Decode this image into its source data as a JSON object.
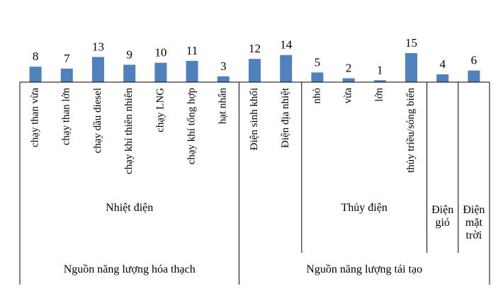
{
  "chart_data": {
    "type": "bar",
    "color": "#4f81bd",
    "groups": [
      {
        "label": "Nguồn năng lượng hóa thạch",
        "subgroups": [
          {
            "label": "Nhiệt điện",
            "categories": [
              "chạy than vừa",
              "chạy than lớn",
              "chạy dầu diesel",
              "chạy khí thiên nhiên",
              "chạy LNG",
              "chạy khí tổng hợp",
              "hạt nhân"
            ],
            "values": [
              8,
              7,
              13,
              9,
              10,
              11,
              3
            ]
          }
        ]
      },
      {
        "label": "Nguồn năng lượng tái tạo",
        "subgroups": [
          {
            "categories": [
              "Điện sinh khối",
              "Điện địa nhiệt"
            ],
            "values": [
              12,
              14
            ]
          },
          {
            "label": "Thủy điện",
            "categories": [
              "nhỏ",
              "vừa",
              "lớn",
              "thủy triều/sóng biển"
            ],
            "values": [
              5,
              2,
              1,
              15
            ]
          },
          {
            "label": "Điện gió",
            "categories": [
              null
            ],
            "values": [
              4
            ]
          },
          {
            "label": "Điện mặt trời",
            "categories": [
              null
            ],
            "values": [
              6
            ]
          }
        ]
      }
    ]
  }
}
